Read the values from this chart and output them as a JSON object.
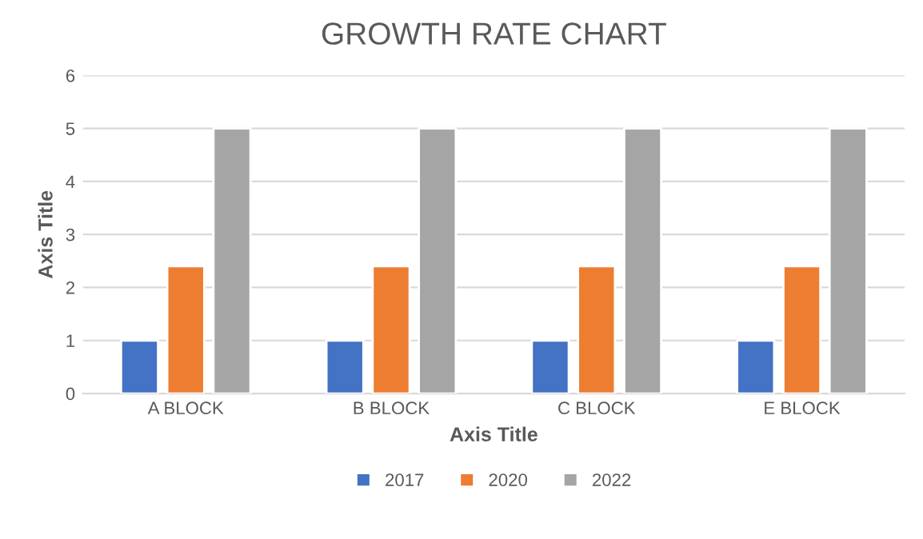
{
  "chart_data": {
    "type": "bar",
    "title": "GROWTH RATE CHART",
    "xlabel": "Axis Title",
    "ylabel": "Axis Title",
    "categories": [
      "A BLOCK",
      "B BLOCK",
      "C BLOCK",
      "E BLOCK"
    ],
    "series": [
      {
        "name": "2017",
        "color": "#4472c4",
        "values": [
          1,
          1,
          1,
          1
        ]
      },
      {
        "name": "2020",
        "color": "#ed7d31",
        "values": [
          2.4,
          2.4,
          2.4,
          2.4
        ]
      },
      {
        "name": "2022",
        "color": "#a5a5a5",
        "values": [
          5,
          5,
          5,
          5
        ]
      }
    ],
    "ylim": [
      0,
      6
    ],
    "yticks": [
      0,
      1,
      2,
      3,
      4,
      5,
      6
    ],
    "grid": "y",
    "legend": "bottom"
  }
}
